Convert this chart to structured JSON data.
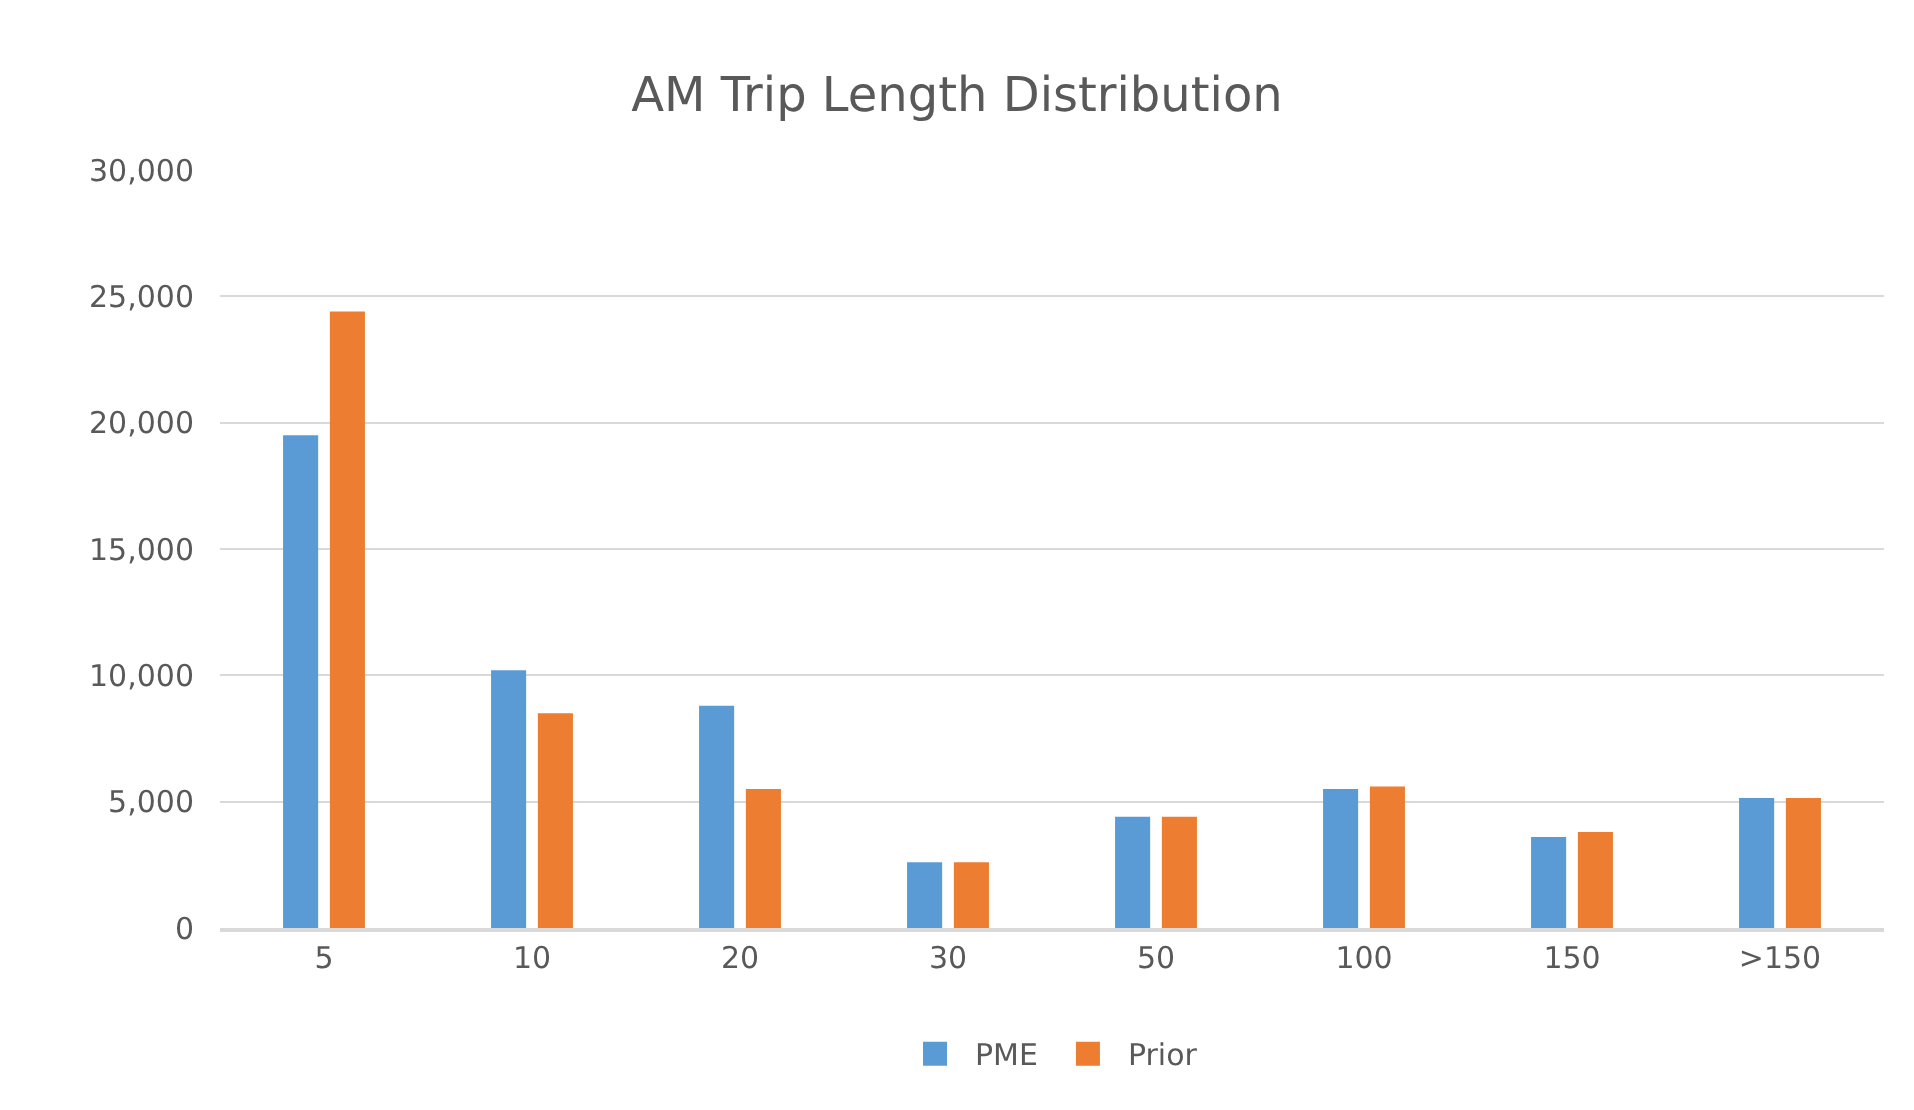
{
  "chart_data": {
    "type": "bar",
    "title": "AM Trip Length Distribution",
    "categories": [
      "5",
      "10",
      "20",
      "30",
      "50",
      "100",
      "150",
      ">150"
    ],
    "series": [
      {
        "name": "PME",
        "color": "#5b9bd5",
        "values": [
          19500,
          10200,
          8800,
          2600,
          4400,
          5500,
          3600,
          5150
        ]
      },
      {
        "name": "Prior",
        "color": "#ed7d31",
        "values": [
          24400,
          8500,
          5500,
          2600,
          4400,
          5600,
          3800,
          5150
        ]
      }
    ],
    "ylim": [
      0,
      30000
    ],
    "yticks": [
      {
        "value": 0,
        "label": "0"
      },
      {
        "value": 5000,
        "label": "5,000"
      },
      {
        "value": 10000,
        "label": "10,000"
      },
      {
        "value": 15000,
        "label": "15,000"
      },
      {
        "value": 20000,
        "label": "20,000"
      },
      {
        "value": 25000,
        "label": "25,000"
      },
      {
        "value": 30000,
        "label": "30,000"
      }
    ],
    "grid": "y",
    "legend": "bottom"
  }
}
